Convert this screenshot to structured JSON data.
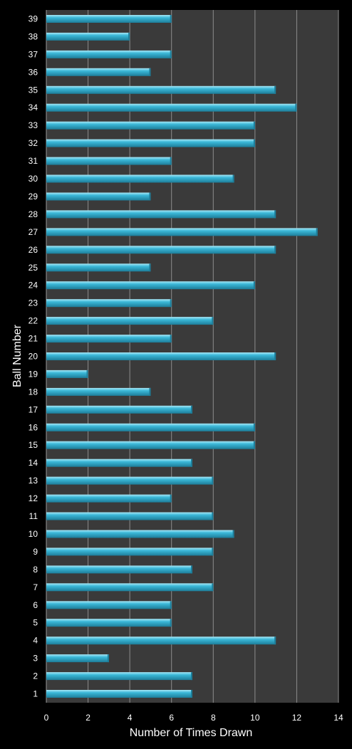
{
  "chart_data": {
    "type": "bar",
    "orientation": "horizontal",
    "title": "",
    "xlabel": "Number of Times Drawn",
    "ylabel": "Ball Number",
    "xlim": [
      0,
      14
    ],
    "xticks": [
      "0",
      "2",
      "4",
      "6",
      "8",
      "10",
      "12",
      "14"
    ],
    "grid": true,
    "legend": "none",
    "categories": [
      "1",
      "2",
      "3",
      "4",
      "5",
      "6",
      "7",
      "8",
      "9",
      "10",
      "11",
      "12",
      "13",
      "14",
      "15",
      "16",
      "17",
      "18",
      "19",
      "20",
      "21",
      "22",
      "23",
      "24",
      "25",
      "26",
      "27",
      "28",
      "29",
      "30",
      "31",
      "32",
      "33",
      "34",
      "35",
      "36",
      "37",
      "38",
      "39"
    ],
    "values": [
      7,
      7,
      3,
      11,
      6,
      6,
      8,
      7,
      8,
      9,
      8,
      6,
      8,
      7,
      10,
      10,
      7,
      5,
      2,
      11,
      6,
      8,
      6,
      10,
      5,
      11,
      13,
      11,
      5,
      9,
      6,
      10,
      10,
      12,
      11,
      5,
      6,
      4,
      6
    ],
    "colors": {
      "bar": "#3bb8d8",
      "bar_highlight": "#a8e8f7",
      "bar_shadow": "#1d7d99",
      "plot_bg": "#3a3a3a",
      "grid": "#8c8c8c",
      "background": "#000000",
      "text": "#ffffff"
    }
  }
}
